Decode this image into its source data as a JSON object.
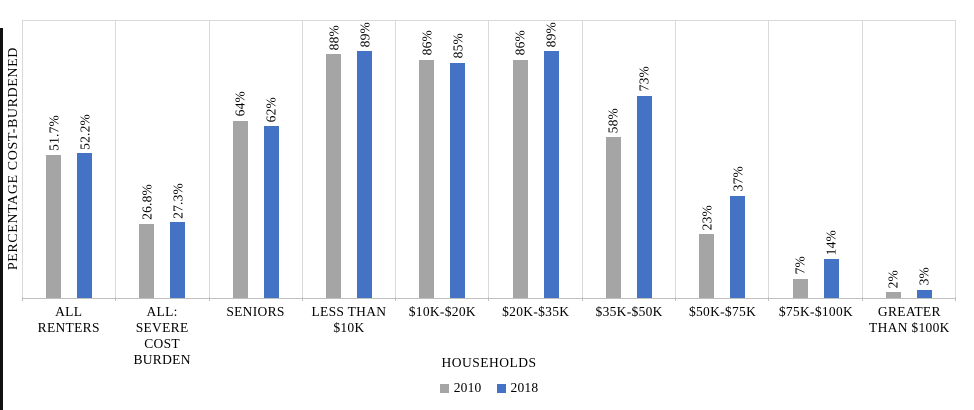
{
  "chart_data": {
    "type": "bar",
    "title": "",
    "xlabel": "HOUSEHOLDS",
    "ylabel": "PERCENTAGE COST-BURDENED",
    "ylim": [
      0,
      100
    ],
    "grid": "vertical category separator lines, light gray",
    "legend_position": "bottom-center",
    "bar_label_rotation": "vertical, reading bottom-to-top, above each bar",
    "categories": [
      "ALL\nRENTERS",
      "ALL:\nSEVERE\nCOST\nBURDEN",
      "SENIORS",
      "LESS THAN\n$10K",
      "$10K-$20K",
      "$20K-$35K",
      "$35K-$50K",
      "$50K-$75K",
      "$75K-$100K",
      "GREATER\nTHAN $100K"
    ],
    "series": [
      {
        "name": "2010",
        "color": "#A5A5A5",
        "values": [
          51.7,
          26.8,
          64,
          88,
          86,
          86,
          58,
          23,
          7,
          2
        ],
        "labels": [
          "51.7%",
          "26.8%",
          "64%",
          "88%",
          "86%",
          "86%",
          "58%",
          "23%",
          "7%",
          "2%"
        ]
      },
      {
        "name": "2018",
        "color": "#4472C4",
        "values": [
          52.2,
          27.3,
          62,
          89,
          85,
          89,
          73,
          37,
          14,
          3
        ],
        "labels": [
          "52.2%",
          "27.3%",
          "62%",
          "89%",
          "85%",
          "89%",
          "73%",
          "37%",
          "14%",
          "3%"
        ]
      }
    ]
  },
  "colors": {
    "series_2010": "#A5A5A5",
    "series_2018": "#4472C4",
    "gridline": "#D9D9D9",
    "axis_line": "#BFBFBF",
    "text": "#000000",
    "page_border": "#111111"
  }
}
